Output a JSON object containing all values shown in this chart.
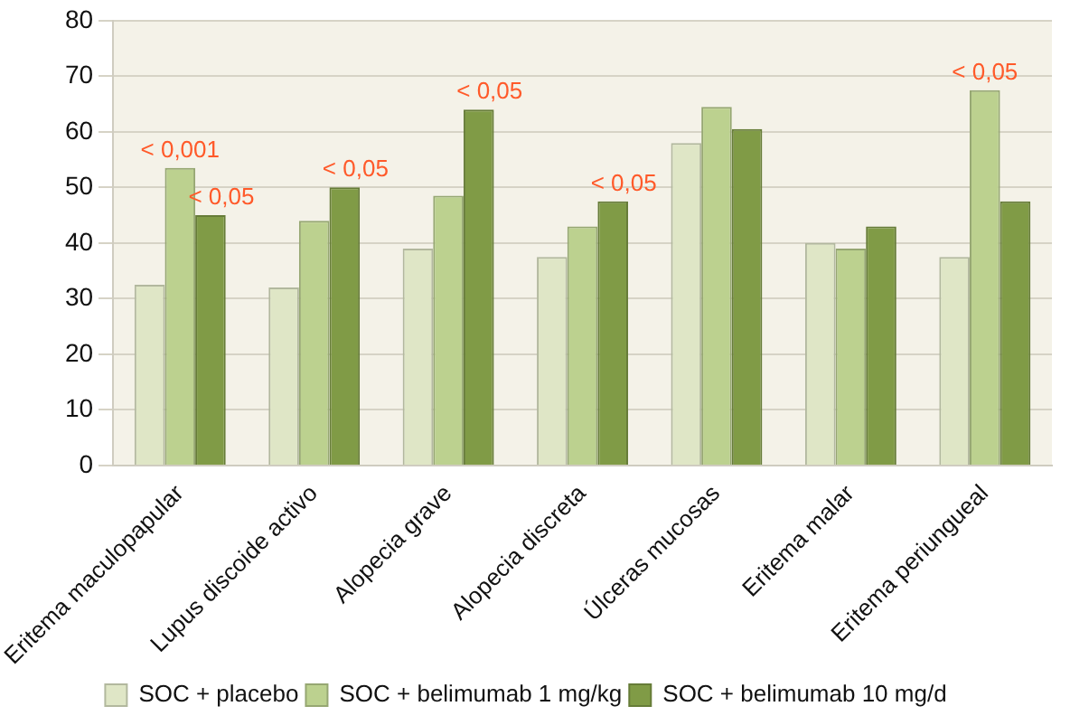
{
  "chart_data": {
    "type": "bar",
    "categories": [
      "Eritema maculopapular",
      "Lupus discoide activo",
      "Alopecia grave",
      "Alopecia discreta",
      "Úlceras mucosas",
      "Eritema malar",
      "Eritema periungueal"
    ],
    "series": [
      {
        "name": "SOC + placebo",
        "color": "#dfe6c6",
        "values": [
          32.5,
          32,
          39,
          37.5,
          58,
          40,
          37.5
        ]
      },
      {
        "name": "SOC + belimumab 1 mg/kg",
        "color": "#bcd18f",
        "values": [
          53.5,
          44,
          48.5,
          43,
          64.5,
          39,
          67.5
        ]
      },
      {
        "name": "SOC + belimumab 10 mg/d",
        "color": "#809b46",
        "values": [
          45,
          50,
          64,
          47.5,
          60.5,
          43,
          47.5
        ]
      }
    ],
    "ylim": [
      0,
      80
    ],
    "yticks": [
      0,
      10,
      20,
      30,
      40,
      50,
      60,
      70,
      80
    ],
    "grid": "y",
    "legend": "bottom",
    "annotations": [
      {
        "text": "< 0,001",
        "x": "Eritema maculopapular",
        "y": 53.5
      },
      "< 0,05",
      "< 0,05",
      "< 0,05",
      "< 0,05",
      {
        "text": "< 0,05",
        "x": "Eritema periungueal",
        "y": 67.5
      }
    ]
  }
}
